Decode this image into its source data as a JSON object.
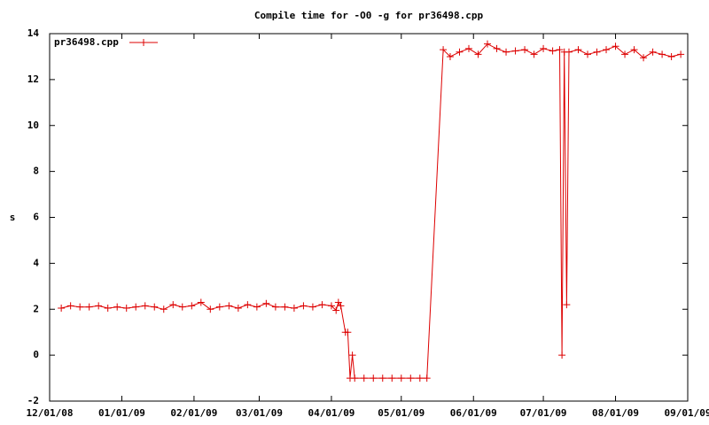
{
  "chart_data": {
    "type": "line",
    "title": "Compile time for -O0 -g for pr36498.cpp",
    "y_label": "s",
    "xlim": [
      "12/01/08",
      "09/01/09"
    ],
    "xticks": [
      "12/01/08",
      "01/01/09",
      "02/01/09",
      "03/01/09",
      "04/01/09",
      "05/01/09",
      "06/01/09",
      "07/01/09",
      "08/01/09",
      "09/01/09"
    ],
    "ylim": [
      -2,
      14
    ],
    "yticks": [
      -2,
      0,
      2,
      4,
      6,
      8,
      10,
      12,
      14
    ],
    "legend": "top-left",
    "x": [
      "12/06/08",
      "12/10/08",
      "12/14/08",
      "12/18/08",
      "12/22/08",
      "12/26/08",
      "12/30/08",
      "01/03/09",
      "01/07/09",
      "01/11/09",
      "01/15/09",
      "01/19/09",
      "01/23/09",
      "01/27/09",
      "01/31/09",
      "02/04/09",
      "02/08/09",
      "02/12/09",
      "02/16/09",
      "02/20/09",
      "02/24/09",
      "02/28/09",
      "03/04/09",
      "03/08/09",
      "03/12/09",
      "03/16/09",
      "03/20/09",
      "03/24/09",
      "03/28/09",
      "04/01/09",
      "04/03/09",
      "04/04/09",
      "04/05/09",
      "04/07/09",
      "04/08/09",
      "04/09/09",
      "04/10/09",
      "04/11/09",
      "04/15/09",
      "04/19/09",
      "04/23/09",
      "04/27/09",
      "05/01/09",
      "05/05/09",
      "05/09/09",
      "05/12/09",
      "05/19/09",
      "05/22/09",
      "05/26/09",
      "05/30/09",
      "06/03/09",
      "06/07/09",
      "06/11/09",
      "06/15/09",
      "06/19/09",
      "06/23/09",
      "06/27/09",
      "07/01/09",
      "07/05/09",
      "07/08/09",
      "07/09/09",
      "07/10/09",
      "07/11/09",
      "07/12/09",
      "07/16/09",
      "07/20/09",
      "07/24/09",
      "07/28/09",
      "08/01/09",
      "08/05/09",
      "08/09/09",
      "08/13/09",
      "08/17/09",
      "08/21/09",
      "08/25/09",
      "08/29/09"
    ],
    "series": [
      {
        "name": "pr36498.cpp",
        "color": "#dd0000",
        "values": [
          2.05,
          2.15,
          2.1,
          2.1,
          2.15,
          2.05,
          2.1,
          2.05,
          2.1,
          2.15,
          2.1,
          2.0,
          2.2,
          2.1,
          2.15,
          2.3,
          2.0,
          2.1,
          2.15,
          2.05,
          2.2,
          2.1,
          2.25,
          2.1,
          2.1,
          2.05,
          2.15,
          2.1,
          2.2,
          2.15,
          1.95,
          2.3,
          2.15,
          1.0,
          1.0,
          -1,
          0,
          -1,
          -1,
          -1,
          -1,
          -1,
          -1,
          -1,
          -1,
          -1,
          13.3,
          13.0,
          13.2,
          13.35,
          13.1,
          13.55,
          13.35,
          13.2,
          13.25,
          13.3,
          13.1,
          13.35,
          13.25,
          13.3,
          0,
          13.2,
          2.2,
          13.2,
          13.3,
          13.1,
          13.2,
          13.3,
          13.45,
          13.1,
          13.3,
          12.95,
          13.2,
          13.1,
          13.0,
          13.1
        ]
      }
    ]
  }
}
